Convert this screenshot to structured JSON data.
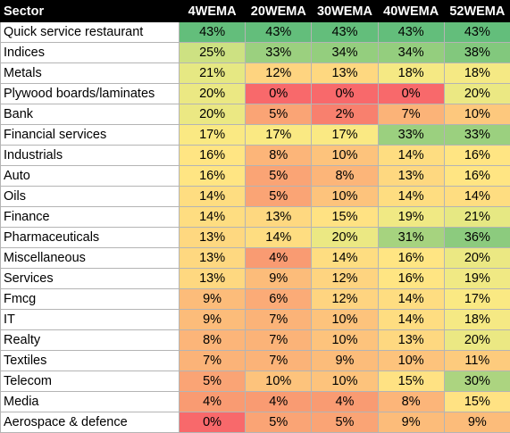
{
  "table": {
    "headers": [
      "Sector",
      "4WEMA",
      "20WEMA",
      "30WEMA",
      "40WEMA",
      "52WEMA"
    ],
    "rows": [
      {
        "sector": "Quick service restaurant",
        "values": [
          "43%",
          "43%",
          "43%",
          "43%",
          "43%"
        ],
        "colors": [
          "#63be7b",
          "#63be7b",
          "#63be7b",
          "#63be7b",
          "#63be7b"
        ]
      },
      {
        "sector": "Indices",
        "values": [
          "25%",
          "33%",
          "34%",
          "34%",
          "38%"
        ],
        "colors": [
          "#cde182",
          "#9bd07f",
          "#94ce7e",
          "#94ce7e",
          "#82c87d"
        ]
      },
      {
        "sector": "Metals",
        "values": [
          "21%",
          "12%",
          "13%",
          "18%",
          "18%"
        ],
        "colors": [
          "#e6e883",
          "#fed480",
          "#fed880",
          "#f5e984",
          "#f5e984"
        ]
      },
      {
        "sector": "Plywood boards/laminates",
        "values": [
          "20%",
          "0%",
          "0%",
          "0%",
          "20%"
        ],
        "colors": [
          "#ebe883",
          "#f8696b",
          "#f8696b",
          "#f8696b",
          "#ebe883"
        ]
      },
      {
        "sector": "Bank",
        "values": [
          "20%",
          "5%",
          "2%",
          "7%",
          "10%"
        ],
        "colors": [
          "#ebe883",
          "#faa475",
          "#f8806e",
          "#fbb378",
          "#fdc87d"
        ]
      },
      {
        "sector": "Financial services",
        "values": [
          "17%",
          "17%",
          "17%",
          "33%",
          "33%"
        ],
        "colors": [
          "#fae983",
          "#fae983",
          "#fae983",
          "#9bd07f",
          "#9bd07f"
        ]
      },
      {
        "sector": "Industrials",
        "values": [
          "16%",
          "8%",
          "10%",
          "14%",
          "16%"
        ],
        "colors": [
          "#ffe583",
          "#fcb579",
          "#fdc37c",
          "#fedd81",
          "#ffe583"
        ]
      },
      {
        "sector": "Auto",
        "values": [
          "16%",
          "5%",
          "8%",
          "13%",
          "16%"
        ],
        "colors": [
          "#ffe583",
          "#faa475",
          "#fcb579",
          "#fed880",
          "#ffe583"
        ]
      },
      {
        "sector": "Oils",
        "values": [
          "14%",
          "5%",
          "10%",
          "14%",
          "14%"
        ],
        "colors": [
          "#fedd81",
          "#faa475",
          "#fdc37c",
          "#fedd81",
          "#fedd81"
        ]
      },
      {
        "sector": "Finance",
        "values": [
          "14%",
          "13%",
          "15%",
          "19%",
          "21%"
        ],
        "colors": [
          "#fedd81",
          "#fed880",
          "#ffe283",
          "#f0e984",
          "#e6e883"
        ]
      },
      {
        "sector": "Pharmaceuticals",
        "values": [
          "13%",
          "14%",
          "20%",
          "31%",
          "36%"
        ],
        "colors": [
          "#fed880",
          "#fedd81",
          "#ebe883",
          "#a6d37f",
          "#8ccb7e"
        ]
      },
      {
        "sector": "Miscellaneous",
        "values": [
          "13%",
          "4%",
          "14%",
          "16%",
          "20%"
        ],
        "colors": [
          "#fed880",
          "#f99b72",
          "#fedd81",
          "#ffe583",
          "#ebe883"
        ]
      },
      {
        "sector": "Services",
        "values": [
          "13%",
          "9%",
          "12%",
          "16%",
          "19%"
        ],
        "colors": [
          "#fed880",
          "#fcbc7a",
          "#fed480",
          "#ffe583",
          "#f0e984"
        ]
      },
      {
        "sector": "Fmcg",
        "values": [
          "9%",
          "6%",
          "12%",
          "14%",
          "17%"
        ],
        "colors": [
          "#fcbc7a",
          "#fbab77",
          "#fed480",
          "#fedd81",
          "#fae983"
        ]
      },
      {
        "sector": "IT",
        "values": [
          "9%",
          "7%",
          "10%",
          "14%",
          "18%"
        ],
        "colors": [
          "#fcbc7a",
          "#fbb378",
          "#fdc37c",
          "#fedd81",
          "#f5e984"
        ]
      },
      {
        "sector": "Realty",
        "values": [
          "8%",
          "7%",
          "10%",
          "13%",
          "20%"
        ],
        "colors": [
          "#fcb579",
          "#fbb378",
          "#fdc37c",
          "#fed880",
          "#ebe883"
        ]
      },
      {
        "sector": "Textiles",
        "values": [
          "7%",
          "7%",
          "9%",
          "10%",
          "11%"
        ],
        "colors": [
          "#fbb378",
          "#fbb378",
          "#fcbc7a",
          "#fdc37c",
          "#fdcb7d"
        ]
      },
      {
        "sector": "Telecom",
        "values": [
          "5%",
          "10%",
          "10%",
          "15%",
          "30%"
        ],
        "colors": [
          "#faa475",
          "#fdc37c",
          "#fdc37c",
          "#ffe283",
          "#acd480"
        ]
      },
      {
        "sector": "Media",
        "values": [
          "4%",
          "4%",
          "4%",
          "8%",
          "15%"
        ],
        "colors": [
          "#f99b72",
          "#f99b72",
          "#f99b72",
          "#fcb579",
          "#ffe283"
        ]
      },
      {
        "sector": "Aerospace & defence",
        "values": [
          "0%",
          "5%",
          "5%",
          "9%",
          "9%"
        ],
        "colors": [
          "#f8696b",
          "#faa475",
          "#faa475",
          "#fcbc7a",
          "#fcbc7a"
        ]
      }
    ]
  }
}
